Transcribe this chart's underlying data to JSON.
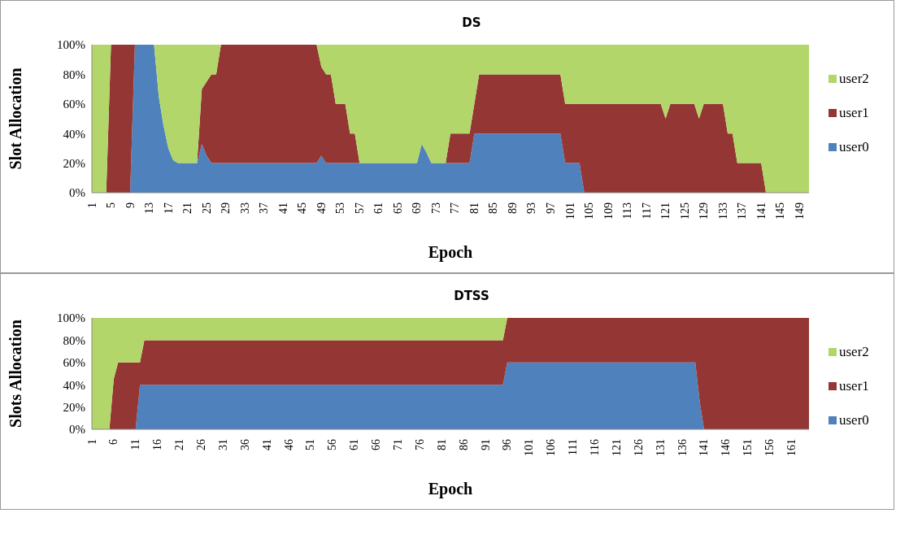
{
  "chart_data": [
    {
      "type": "area",
      "title": "DS",
      "xlabel": "Epoch",
      "ylabel": "Slot Allocation",
      "stacked": true,
      "legend": "right",
      "categories": [
        "1",
        null,
        null,
        null,
        "5",
        null,
        null,
        null,
        "9",
        null,
        null,
        null,
        "13",
        null,
        null,
        null,
        "17",
        null,
        null,
        null,
        "21",
        null,
        null,
        null,
        "25",
        null,
        null,
        null,
        "29",
        null,
        null,
        null,
        "33",
        null,
        null,
        null,
        "37",
        null,
        null,
        null,
        "41",
        null,
        null,
        null,
        "45",
        null,
        null,
        null,
        "49",
        null,
        null,
        null,
        "53",
        null,
        null,
        null,
        "57",
        null,
        null,
        null,
        "61",
        null,
        null,
        null,
        "65",
        null,
        null,
        null,
        "69",
        null,
        null,
        null,
        "73",
        null,
        null,
        null,
        "77",
        null,
        null,
        null,
        "81",
        null,
        null,
        null,
        "85",
        null,
        null,
        null,
        "89",
        null,
        null,
        null,
        "93",
        null,
        null,
        null,
        "97",
        null,
        null,
        null,
        "101",
        null,
        null,
        null,
        "105",
        null,
        null,
        null,
        "109",
        null,
        null,
        null,
        "113",
        null,
        null,
        null,
        "117",
        null,
        null,
        null,
        "121",
        null,
        null,
        null,
        "125",
        null,
        null,
        null,
        "129",
        null,
        null,
        null,
        "133",
        null,
        null,
        null,
        "137",
        null,
        null,
        null,
        "141",
        null,
        null,
        null,
        "145",
        null,
        null,
        null,
        "149",
        null,
        null
      ],
      "ylim": [
        0,
        100
      ],
      "yticks": [
        {
          "value": 0,
          "label": "0%"
        },
        {
          "value": 20,
          "label": "20%"
        },
        {
          "value": 40,
          "label": "40%"
        },
        {
          "value": 60,
          "label": "60%"
        },
        {
          "value": 80,
          "label": "80%"
        },
        {
          "value": 100,
          "label": "100%"
        }
      ],
      "series": [
        {
          "name": "user0",
          "color": "#4f81bd",
          "values": [
            0,
            0,
            0,
            0,
            0,
            0,
            0,
            0,
            0,
            100,
            100,
            100,
            100,
            100,
            65,
            45,
            30,
            22,
            20,
            20,
            20,
            20,
            20,
            33,
            25,
            20,
            20,
            20,
            20,
            20,
            20,
            20,
            20,
            20,
            20,
            20,
            20,
            20,
            20,
            20,
            20,
            20,
            20,
            20,
            20,
            20,
            20,
            20,
            25,
            20,
            20,
            20,
            20,
            20,
            20,
            20,
            20,
            20,
            20,
            20,
            20,
            20,
            20,
            20,
            20,
            20,
            20,
            20,
            20,
            33,
            27,
            20,
            20,
            20,
            20,
            20,
            20,
            20,
            20,
            20,
            40,
            40,
            40,
            40,
            40,
            40,
            40,
            40,
            40,
            40,
            40,
            40,
            40,
            40,
            40,
            40,
            40,
            40,
            40,
            20,
            20,
            20,
            20,
            0,
            0,
            0,
            0,
            0,
            0,
            0,
            0,
            0,
            0,
            0,
            0,
            0,
            0,
            0,
            0,
            0,
            0,
            0,
            0,
            0,
            0,
            0,
            0,
            0,
            0,
            0,
            0,
            0,
            0,
            0,
            0,
            0,
            0,
            0,
            0,
            0,
            0,
            0,
            0,
            0,
            0,
            0,
            0,
            0,
            0,
            0,
            0
          ]
        },
        {
          "name": "user1",
          "color": "#943634",
          "values": [
            null,
            null,
            null,
            0,
            100,
            100,
            100,
            100,
            100,
            0,
            null,
            null,
            null,
            null,
            null,
            null,
            null,
            null,
            null,
            null,
            null,
            null,
            0,
            37,
            50,
            60,
            60,
            80,
            80,
            80,
            80,
            80,
            80,
            80,
            80,
            80,
            80,
            80,
            80,
            80,
            80,
            80,
            80,
            80,
            80,
            80,
            80,
            80,
            60,
            60,
            60,
            40,
            40,
            40,
            20,
            20,
            0,
            null,
            null,
            null,
            null,
            null,
            null,
            null,
            null,
            null,
            null,
            null,
            null,
            null,
            null,
            null,
            null,
            null,
            0,
            20,
            20,
            20,
            20,
            20,
            20,
            40,
            40,
            40,
            40,
            40,
            40,
            40,
            40,
            40,
            40,
            40,
            40,
            40,
            40,
            40,
            40,
            40,
            40,
            40,
            40,
            40,
            40,
            60,
            60,
            60,
            60,
            60,
            60,
            60,
            60,
            60,
            60,
            60,
            60,
            60,
            60,
            60,
            60,
            60,
            50,
            60,
            60,
            60,
            60,
            60,
            60,
            50,
            60,
            60,
            60,
            60,
            60,
            40,
            40,
            20,
            20,
            20,
            20,
            20,
            20,
            0,
            null,
            null,
            null,
            null,
            null,
            null,
            null,
            null,
            null
          ]
        },
        {
          "name": "user2",
          "color": "#b2d66a",
          "values": [
            100,
            100,
            100,
            100,
            0,
            null,
            null,
            null,
            null,
            null,
            null,
            null,
            null,
            0,
            35,
            55,
            70,
            78,
            80,
            80,
            80,
            80,
            80,
            30,
            25,
            20,
            20,
            0,
            null,
            null,
            null,
            null,
            null,
            null,
            null,
            null,
            null,
            null,
            null,
            null,
            null,
            null,
            null,
            null,
            null,
            null,
            null,
            0,
            15,
            20,
            20,
            40,
            40,
            40,
            60,
            60,
            80,
            80,
            80,
            80,
            80,
            80,
            80,
            80,
            80,
            80,
            80,
            80,
            80,
            67,
            73,
            80,
            80,
            80,
            80,
            60,
            60,
            60,
            60,
            60,
            40,
            20,
            20,
            20,
            20,
            20,
            20,
            20,
            20,
            20,
            20,
            20,
            20,
            20,
            20,
            20,
            20,
            20,
            20,
            40,
            40,
            40,
            40,
            40,
            40,
            40,
            40,
            40,
            40,
            40,
            40,
            40,
            40,
            40,
            40,
            40,
            40,
            40,
            40,
            40,
            50,
            40,
            40,
            40,
            40,
            40,
            40,
            50,
            40,
            40,
            40,
            40,
            40,
            60,
            60,
            80,
            80,
            80,
            80,
            80,
            80,
            100,
            100,
            100,
            100,
            100,
            100,
            100,
            100,
            100,
            100
          ]
        }
      ]
    },
    {
      "type": "area",
      "title": "DTSS",
      "xlabel": "Epoch",
      "ylabel": "Slots Allocation",
      "stacked": true,
      "legend": "right",
      "categories": [
        "1",
        null,
        null,
        null,
        null,
        "6",
        null,
        null,
        null,
        null,
        "11",
        null,
        null,
        null,
        null,
        "16",
        null,
        null,
        null,
        null,
        "21",
        null,
        null,
        null,
        null,
        "26",
        null,
        null,
        null,
        null,
        "31",
        null,
        null,
        null,
        null,
        "36",
        null,
        null,
        null,
        null,
        "41",
        null,
        null,
        null,
        null,
        "46",
        null,
        null,
        null,
        null,
        "51",
        null,
        null,
        null,
        null,
        "56",
        null,
        null,
        null,
        null,
        "61",
        null,
        null,
        null,
        null,
        "66",
        null,
        null,
        null,
        null,
        "71",
        null,
        null,
        null,
        null,
        "76",
        null,
        null,
        null,
        null,
        "81",
        null,
        null,
        null,
        null,
        "86",
        null,
        null,
        null,
        null,
        "91",
        null,
        null,
        null,
        null,
        "96",
        null,
        null,
        null,
        null,
        "101",
        null,
        null,
        null,
        null,
        "106",
        null,
        null,
        null,
        null,
        "111",
        null,
        null,
        null,
        null,
        "116",
        null,
        null,
        null,
        null,
        "121",
        null,
        null,
        null,
        null,
        "126",
        null,
        null,
        null,
        null,
        "131",
        null,
        null,
        null,
        null,
        "136",
        null,
        null,
        null,
        null,
        "141",
        null,
        null,
        null,
        null,
        "146",
        null,
        null,
        null,
        null,
        "151",
        null,
        null,
        null,
        null,
        "156",
        null,
        null,
        null,
        null,
        "161",
        null,
        null,
        null,
        null
      ],
      "ylim": [
        0,
        100
      ],
      "yticks": [
        {
          "value": 0,
          "label": "0%"
        },
        {
          "value": 20,
          "label": "20%"
        },
        {
          "value": 40,
          "label": "40%"
        },
        {
          "value": 60,
          "label": "60%"
        },
        {
          "value": 80,
          "label": "80%"
        },
        {
          "value": 100,
          "label": "100%"
        }
      ],
      "series": [
        {
          "name": "user0",
          "color": "#4f81bd",
          "values": [
            0,
            0,
            0,
            0,
            0,
            0,
            0,
            0,
            0,
            0,
            0,
            40,
            40,
            40,
            40,
            40,
            40,
            40,
            40,
            40,
            40,
            40,
            40,
            40,
            40,
            40,
            40,
            40,
            40,
            40,
            40,
            40,
            40,
            40,
            40,
            40,
            40,
            40,
            40,
            40,
            40,
            40,
            40,
            40,
            40,
            40,
            40,
            40,
            40,
            40,
            40,
            40,
            40,
            40,
            40,
            40,
            40,
            40,
            40,
            40,
            40,
            40,
            40,
            40,
            40,
            40,
            40,
            40,
            40,
            40,
            40,
            40,
            40,
            40,
            40,
            40,
            40,
            40,
            40,
            40,
            40,
            40,
            40,
            40,
            40,
            40,
            40,
            40,
            40,
            40,
            40,
            40,
            40,
            40,
            40,
            60,
            60,
            60,
            60,
            60,
            60,
            60,
            60,
            60,
            60,
            60,
            60,
            60,
            60,
            60,
            60,
            60,
            60,
            60,
            60,
            60,
            60,
            60,
            60,
            60,
            60,
            60,
            60,
            60,
            60,
            60,
            60,
            60,
            60,
            60,
            60,
            60,
            60,
            60,
            60,
            60,
            60,
            60,
            60,
            25,
            0,
            0,
            0,
            0,
            0,
            0,
            0,
            0,
            0,
            0,
            0,
            0,
            0,
            0,
            0,
            0,
            0,
            0,
            0,
            0,
            0,
            0,
            0,
            0,
            0
          ]
        },
        {
          "name": "user1",
          "color": "#943634",
          "values": [
            0,
            0,
            0,
            0,
            0,
            45,
            60,
            60,
            60,
            60,
            60,
            20,
            40,
            40,
            40,
            40,
            40,
            40,
            40,
            40,
            40,
            40,
            40,
            40,
            40,
            40,
            40,
            40,
            40,
            40,
            40,
            40,
            40,
            40,
            40,
            40,
            40,
            40,
            40,
            40,
            40,
            40,
            40,
            40,
            40,
            40,
            40,
            40,
            40,
            40,
            40,
            40,
            40,
            40,
            40,
            40,
            40,
            40,
            40,
            40,
            40,
            40,
            40,
            40,
            40,
            40,
            40,
            40,
            40,
            40,
            40,
            40,
            40,
            40,
            40,
            40,
            40,
            40,
            40,
            40,
            40,
            40,
            40,
            40,
            40,
            40,
            40,
            40,
            40,
            40,
            40,
            40,
            40,
            40,
            40,
            40,
            40,
            40,
            40,
            40,
            40,
            40,
            40,
            40,
            40,
            40,
            40,
            40,
            40,
            40,
            40,
            40,
            40,
            40,
            40,
            40,
            40,
            40,
            40,
            40,
            40,
            40,
            40,
            40,
            40,
            40,
            40,
            40,
            40,
            40,
            40,
            40,
            40,
            40,
            40,
            40,
            40,
            40,
            40,
            75,
            100,
            100,
            100,
            100,
            100,
            100,
            100,
            100,
            100,
            100,
            100,
            100,
            100,
            100,
            100,
            100,
            100,
            100,
            100,
            100,
            100,
            100,
            100,
            100,
            100
          ]
        },
        {
          "name": "user2",
          "color": "#b2d66a",
          "values": [
            100,
            100,
            100,
            100,
            100,
            55,
            40,
            40,
            40,
            40,
            40,
            40,
            20,
            20,
            20,
            20,
            20,
            20,
            20,
            20,
            20,
            20,
            20,
            20,
            20,
            20,
            20,
            20,
            20,
            20,
            20,
            20,
            20,
            20,
            20,
            20,
            20,
            20,
            20,
            20,
            20,
            20,
            20,
            20,
            20,
            20,
            20,
            20,
            20,
            20,
            20,
            20,
            20,
            20,
            20,
            20,
            20,
            20,
            20,
            20,
            20,
            20,
            20,
            20,
            20,
            20,
            20,
            20,
            20,
            20,
            20,
            20,
            20,
            20,
            20,
            20,
            20,
            20,
            20,
            20,
            20,
            20,
            20,
            20,
            20,
            20,
            20,
            20,
            20,
            20,
            20,
            20,
            20,
            20,
            20,
            0,
            null,
            null,
            null,
            null,
            null,
            null,
            null,
            null,
            null,
            null,
            null,
            null,
            null,
            null,
            null,
            null,
            null,
            null,
            null,
            null,
            null,
            null,
            null,
            null,
            null,
            null,
            null,
            null,
            null,
            null,
            null,
            null,
            null,
            null,
            null,
            null,
            null,
            null,
            null,
            null,
            null,
            null,
            null,
            null,
            null,
            null,
            null,
            null,
            null,
            null,
            null,
            null,
            null,
            null,
            null,
            null,
            null,
            null,
            null,
            null,
            null,
            null,
            null,
            null,
            null,
            null,
            null,
            null,
            null
          ]
        }
      ]
    }
  ]
}
